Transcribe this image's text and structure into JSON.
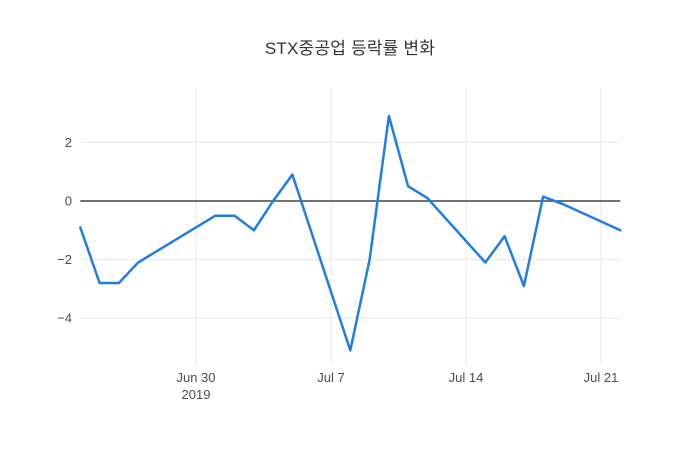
{
  "title": "STX중공업 등락률 변화",
  "colors": {
    "background": "#ffffff",
    "line": "#1f7fe0",
    "zero_line": "#444444",
    "grid": "#e8e8e8",
    "tick_text": "#4d4d4d",
    "title_text": "#333333"
  },
  "chart_data": {
    "type": "line",
    "title": "STX중공업 등락률 변화",
    "xlabel": "",
    "ylabel": "",
    "grid": true,
    "legend": false,
    "x_origin_date": "2019-06-30",
    "x": [
      "2019-06-24",
      "2019-06-25",
      "2019-06-26",
      "2019-06-27",
      "2019-06-28",
      "2019-07-01",
      "2019-07-02",
      "2019-07-03",
      "2019-07-04",
      "2019-07-05",
      "2019-07-08",
      "2019-07-09",
      "2019-07-10",
      "2019-07-11",
      "2019-07-12",
      "2019-07-15",
      "2019-07-16",
      "2019-07-17",
      "2019-07-18",
      "2019-07-19",
      "2019-07-22"
    ],
    "y": [
      -0.9,
      -2.8,
      -2.8,
      -2.1,
      -1.7,
      -0.5,
      -0.5,
      -1.0,
      0.0,
      0.9,
      -5.1,
      -2.0,
      2.9,
      0.5,
      0.1,
      -2.1,
      -1.2,
      -2.9,
      0.15,
      -0.1,
      -1.0
    ],
    "y_ticks": [
      2,
      0,
      -2,
      -4
    ],
    "x_ticks": [
      {
        "date": "2019-06-30",
        "label": "Jun 30",
        "sublabel": "2019"
      },
      {
        "date": "2019-07-07",
        "label": "Jul 7",
        "sublabel": ""
      },
      {
        "date": "2019-07-14",
        "label": "Jul 14",
        "sublabel": ""
      },
      {
        "date": "2019-07-21",
        "label": "Jul 21",
        "sublabel": ""
      }
    ],
    "ylim": [
      -5.6,
      3.9
    ],
    "xlim_dates": [
      "2019-06-24",
      "2019-07-22"
    ]
  }
}
